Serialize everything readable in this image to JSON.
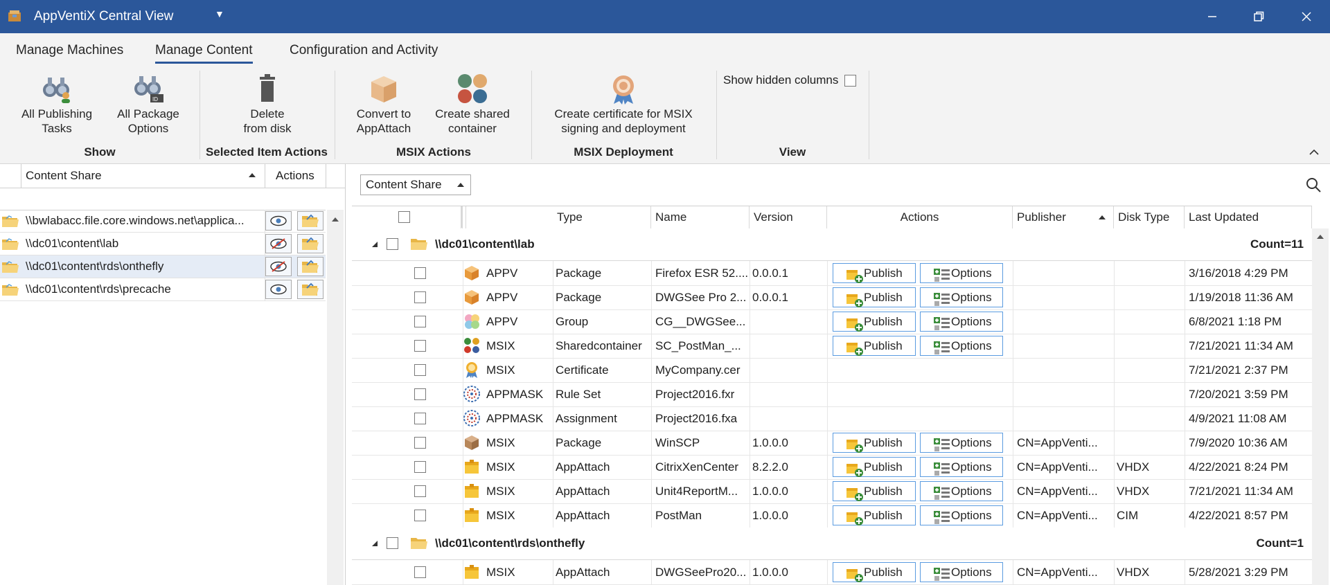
{
  "window": {
    "title": "AppVentiX Central View"
  },
  "tabs": [
    {
      "label": "Manage Machines"
    },
    {
      "label": "Manage Content"
    },
    {
      "label": "Configuration and Activity"
    }
  ],
  "ribbon": {
    "all_publishing": "All Publishing\nTasks",
    "all_package": "All Package\nOptions",
    "delete": "Delete\nfrom disk",
    "convert": "Convert to\nAppAttach",
    "shared": "Create shared\ncontainer",
    "cert": "Create certificate for MSIX\nsigning and deployment",
    "show_hidden": "Show hidden columns",
    "groups": {
      "show": "Show",
      "selected": "Selected Item Actions",
      "msix_actions": "MSIX Actions",
      "msix_deploy": "MSIX Deployment",
      "view": "View"
    }
  },
  "left": {
    "headers": {
      "share": "Content Share",
      "actions": "Actions"
    },
    "rows": [
      {
        "path": "\\\\bwlabacc.file.core.windows.net\\applica...",
        "visible": true
      },
      {
        "path": "\\\\dc01\\content\\lab",
        "visible": false
      },
      {
        "path": "\\\\dc01\\content\\rds\\onthefly",
        "visible": false
      },
      {
        "path": "\\\\dc01\\content\\rds\\precache",
        "visible": true
      }
    ]
  },
  "right": {
    "groupby": "Content Share",
    "headers": {
      "type": "Type",
      "name": "Name",
      "version": "Version",
      "actions": "Actions",
      "publisher": "Publisher",
      "disktype": "Disk Type",
      "updated": "Last Updated"
    },
    "publish_label": "Publish",
    "options_label": "Options",
    "groups": [
      {
        "title": "\\\\dc01\\content\\lab",
        "count": "Count=11"
      },
      {
        "title": "\\\\dc01\\content\\rds\\onthefly",
        "count": "Count=1"
      }
    ],
    "rows": [
      {
        "kind": "APPV",
        "icon": "box-orange",
        "type": "Package",
        "name": "Firefox ESR 52....",
        "version": "0.0.0.1",
        "btn": true,
        "publisher": "",
        "disk": "",
        "updated": "3/16/2018 4:29 PM"
      },
      {
        "kind": "APPV",
        "icon": "box-orange",
        "type": "Package",
        "name": "DWGSee Pro 2...",
        "version": "0.0.0.1",
        "btn": true,
        "publisher": "",
        "disk": "",
        "updated": "1/19/2018 11:36 AM"
      },
      {
        "kind": "APPV",
        "icon": "group",
        "type": "Group",
        "name": "CG__DWGSee...",
        "version": "",
        "btn": true,
        "publisher": "",
        "disk": "",
        "updated": "6/8/2021 1:18 PM"
      },
      {
        "kind": "MSIX",
        "icon": "shared",
        "type": "Sharedcontainer",
        "name": "SC_PostMan_...",
        "version": "",
        "btn": true,
        "publisher": "",
        "disk": "",
        "updated": "7/21/2021 11:34 AM"
      },
      {
        "kind": "MSIX",
        "icon": "cert",
        "type": "Certificate",
        "name": "MyCompany.cer",
        "version": "",
        "btn": false,
        "publisher": "",
        "disk": "",
        "updated": "7/21/2021 2:37 PM"
      },
      {
        "kind": "APPMASK",
        "icon": "mask",
        "type": "Rule Set",
        "name": "Project2016.fxr",
        "version": "",
        "btn": false,
        "publisher": "",
        "disk": "",
        "updated": "7/20/2021 3:59 PM"
      },
      {
        "kind": "APPMASK",
        "icon": "mask",
        "type": "Assignment",
        "name": "Project2016.fxa",
        "version": "",
        "btn": false,
        "publisher": "",
        "disk": "",
        "updated": "4/9/2021 11:08 AM"
      },
      {
        "kind": "MSIX",
        "icon": "box-brown",
        "type": "Package",
        "name": "WinSCP",
        "version": "1.0.0.0",
        "btn": true,
        "publisher": "CN=AppVenti...",
        "disk": "",
        "updated": "7/9/2020 10:36 AM"
      },
      {
        "kind": "MSIX",
        "icon": "attach",
        "type": "AppAttach",
        "name": "CitrixXenCenter",
        "version": "8.2.2.0",
        "btn": true,
        "publisher": "CN=AppVenti...",
        "disk": "VHDX",
        "updated": "4/22/2021 8:24 PM"
      },
      {
        "kind": "MSIX",
        "icon": "attach",
        "type": "AppAttach",
        "name": "Unit4ReportM...",
        "version": "1.0.0.0",
        "btn": true,
        "publisher": "CN=AppVenti...",
        "disk": "VHDX",
        "updated": "7/21/2021 11:34 AM"
      },
      {
        "kind": "MSIX",
        "icon": "attach",
        "type": "AppAttach",
        "name": "PostMan",
        "version": "1.0.0.0",
        "btn": true,
        "publisher": "CN=AppVenti...",
        "disk": "CIM",
        "updated": "4/22/2021 8:57 PM"
      }
    ],
    "rows2": [
      {
        "kind": "MSIX",
        "icon": "attach",
        "type": "AppAttach",
        "name": "DWGSeePro20...",
        "version": "1.0.0.0",
        "btn": true,
        "publisher": "CN=AppVenti...",
        "disk": "VHDX",
        "updated": "5/28/2021 3:29 PM"
      }
    ]
  }
}
